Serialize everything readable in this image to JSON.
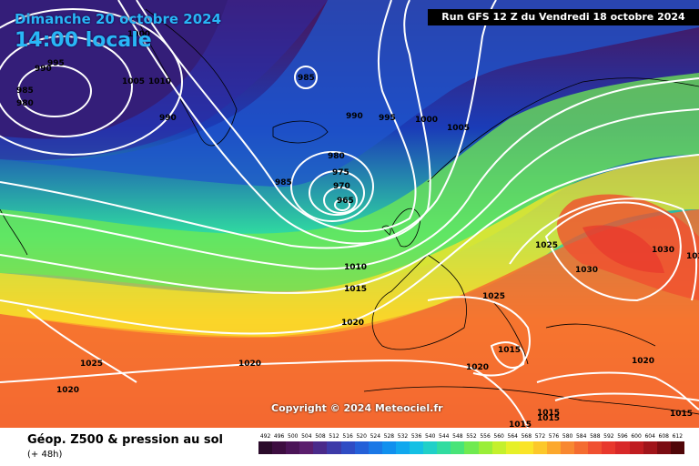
{
  "header": {
    "date_line": "Dimanche 20 octobre 2024",
    "time_line": "14:00 locale",
    "run": "Run GFS 12 Z du Vendredi 18 octobre 2024"
  },
  "copyright": "Copyright © 2024 Meteociel.fr",
  "legend": {
    "title": "Géop. Z500 & pression au sol",
    "subtitle": "(+ 48h)",
    "scale_values": [
      "492",
      "496",
      "500",
      "504",
      "508",
      "512",
      "516",
      "520",
      "524",
      "528",
      "532",
      "536",
      "540",
      "544",
      "548",
      "552",
      "556",
      "560",
      "564",
      "568",
      "572",
      "576",
      "580",
      "584",
      "588",
      "592",
      "596",
      "600",
      "604",
      "608",
      "612"
    ],
    "scale_colors": [
      "#2a0a2a",
      "#3d0d40",
      "#4b1457",
      "#5b1e6d",
      "#4a2a8a",
      "#3d3aa8",
      "#2f4cc4",
      "#2460d8",
      "#1a78e6",
      "#1090ee",
      "#10a8ee",
      "#14c0e4",
      "#20d0c8",
      "#30dca0",
      "#48e478",
      "#70ea50",
      "#9aee38",
      "#c4f02c",
      "#e6f028",
      "#fae428",
      "#fcc82a",
      "#fca82c",
      "#f88830",
      "#f46c30",
      "#f05030",
      "#e8382c",
      "#d82828",
      "#c01c20",
      "#a0141a",
      "#7a0c12",
      "#500608"
    ]
  },
  "isobar_labels": [
    "1000",
    "995",
    "990",
    "985",
    "980",
    "1005",
    "1010",
    "990",
    "985",
    "990",
    "995",
    "1000",
    "1005",
    "980",
    "975",
    "970",
    "965",
    "985",
    "1010",
    "1015",
    "1020",
    "1020",
    "1025",
    "1020",
    "1025",
    "1025",
    "1030",
    "1030",
    "1015",
    "1020",
    "1020",
    "1015",
    "1015",
    "1015",
    "1015",
    "1020"
  ],
  "colors": {
    "isobar": "#ffffff",
    "coast": "#000000",
    "title_blue": "#29b6f6"
  }
}
